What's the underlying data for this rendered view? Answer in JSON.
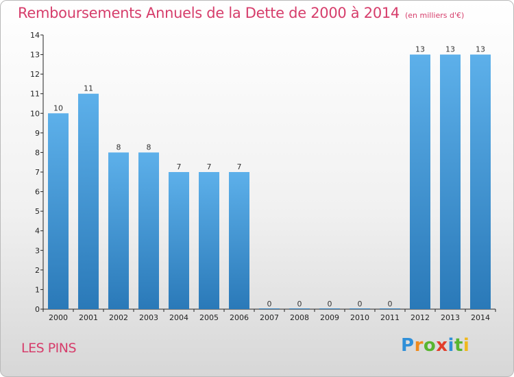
{
  "title": "Remboursements Annuels de la Dette de 2000 à 2014",
  "subtitle": "(en milliers d'€)",
  "commune": "LES PINS",
  "logo": {
    "letters": [
      "P",
      "r",
      "o",
      "x",
      "i",
      "t",
      "i"
    ],
    "colors": [
      "#2f8fd8",
      "#f08a1c",
      "#58b530",
      "#e23e2b",
      "#2f8fd8",
      "#58b530",
      "#f0b81c"
    ]
  },
  "colors": {
    "title": "#d63d6b",
    "bar_top": "#5db0ea",
    "bar_bottom": "#2a79b8"
  },
  "chart_data": {
    "type": "bar",
    "title": "Remboursements Annuels de la Dette de 2000 à 2014",
    "subtitle": "(en milliers d'€)",
    "categories": [
      "2000",
      "2001",
      "2002",
      "2003",
      "2004",
      "2005",
      "2006",
      "2007",
      "2008",
      "2009",
      "2010",
      "2011",
      "2012",
      "2013",
      "2014"
    ],
    "values": [
      10,
      11,
      8,
      8,
      7,
      7,
      7,
      0,
      0,
      0,
      0,
      0,
      13,
      13,
      13
    ],
    "value_labels": [
      "10",
      "11",
      "8",
      "8",
      "7",
      "7",
      "7",
      "0",
      "0",
      "0",
      "0",
      "0",
      "13",
      "13",
      "13"
    ],
    "yticks": [
      "0",
      "1",
      "2",
      "3",
      "4",
      "5",
      "6",
      "7",
      "8",
      "9",
      "10",
      "11",
      "12",
      "13",
      "14"
    ],
    "ylim": [
      0,
      14
    ],
    "grid": false,
    "legend": "none"
  }
}
